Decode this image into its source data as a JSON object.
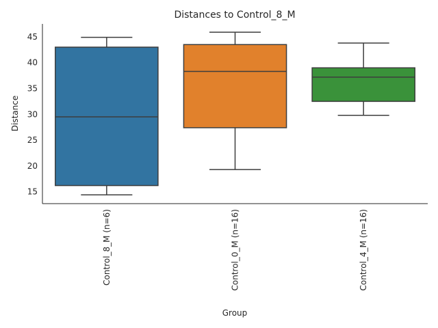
{
  "chart_data": {
    "type": "box",
    "title": "Distances to Control_8_M",
    "xlabel": "Group",
    "ylabel": "Distance",
    "ylim": [
      12.7,
      47.5
    ],
    "yticks": [
      15,
      20,
      25,
      30,
      35,
      40,
      45
    ],
    "grid": false,
    "categories": [
      "Control_8_M (n=6)",
      "Control_0_M (n=16)",
      "Control_4_M (n=16)"
    ],
    "boxes": [
      {
        "whisker_low": 14.4,
        "q1": 16.2,
        "median": 29.5,
        "q3": 43.0,
        "whisker_high": 44.9,
        "color": "#3274a1"
      },
      {
        "whisker_low": 19.3,
        "q1": 27.4,
        "median": 38.3,
        "q3": 43.5,
        "whisker_high": 45.9,
        "color": "#e1812c"
      },
      {
        "whisker_low": 29.8,
        "q1": 32.5,
        "median": 37.2,
        "q3": 39.0,
        "whisker_high": 43.8,
        "color": "#3a923a"
      }
    ]
  }
}
